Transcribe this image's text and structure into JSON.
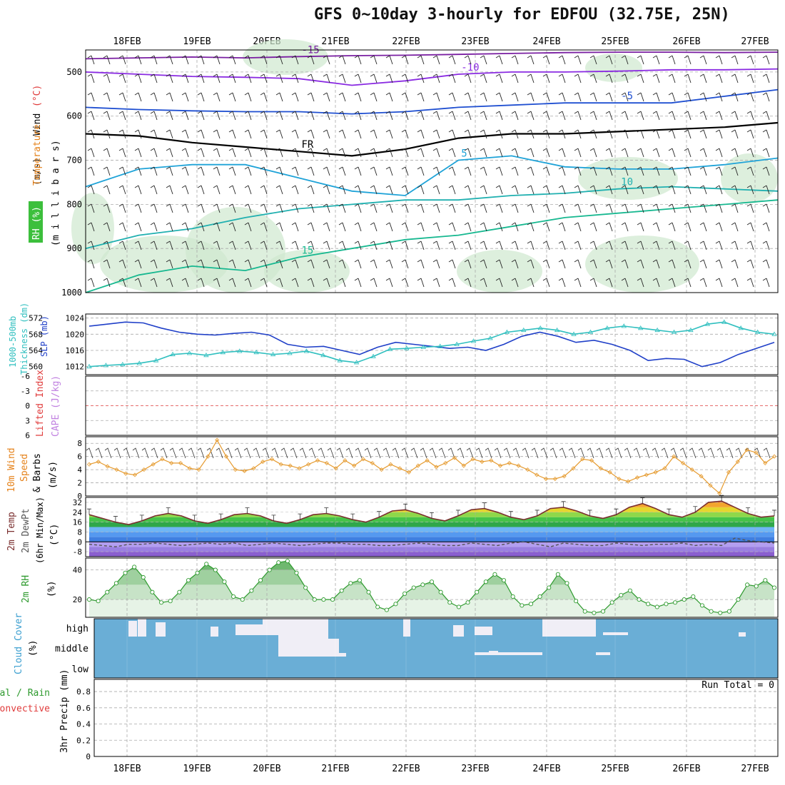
{
  "title": "GFS 0~10day 3-hourly for EDFOU (32.75E, 25N)",
  "date_labels": [
    "18FEB",
    "19FEB",
    "20FEB",
    "21FEB",
    "22FEB",
    "23FEB",
    "24FEB",
    "25FEB",
    "26FEB",
    "27FEB"
  ],
  "chart_data": [
    {
      "type": "contour",
      "panel": "upper-air",
      "ylabels": [
        "Temperature",
        "(°C)",
        "Wind",
        "(m/s)",
        "RH (%)",
        "(m i l l i b a r s)"
      ],
      "yticks": [
        500,
        600,
        700,
        800,
        900,
        1000
      ],
      "ylim": [
        450,
        1000
      ],
      "temperature_isotherms": [
        {
          "label": "-15",
          "color": "#7a1fa2",
          "p": [
            470,
            468,
            466,
            468,
            465,
            463,
            462,
            460,
            458,
            456,
            455,
            455,
            456,
            455
          ]
        },
        {
          "label": "-10",
          "color": "#8a2be2",
          "p": [
            500,
            505,
            510,
            512,
            515,
            530,
            520,
            505,
            500,
            500,
            498,
            495,
            495,
            493
          ]
        },
        {
          "label": "-5",
          "color": "#1f4fd1",
          "p": [
            580,
            585,
            588,
            590,
            590,
            595,
            590,
            580,
            575,
            570,
            570,
            570,
            555,
            540
          ]
        },
        {
          "label": "FR",
          "color": "#000000",
          "p": [
            640,
            645,
            660,
            670,
            680,
            690,
            675,
            650,
            640,
            640,
            635,
            630,
            625,
            615
          ]
        },
        {
          "label": "5",
          "color": "#1fa3d8",
          "p": [
            760,
            720,
            710,
            710,
            740,
            770,
            780,
            700,
            690,
            715,
            720,
            720,
            710,
            695
          ]
        },
        {
          "label": "10",
          "color": "#20b0b0",
          "p": [
            900,
            870,
            855,
            830,
            810,
            800,
            790,
            790,
            780,
            775,
            765,
            760,
            765,
            770
          ]
        },
        {
          "label": "15",
          "color": "#17b890",
          "p": [
            1000,
            960,
            940,
            950,
            920,
            900,
            880,
            870,
            850,
            830,
            820,
            810,
            800,
            790
          ]
        }
      ],
      "rh_shading": "light-green",
      "barbs": true
    },
    {
      "type": "line",
      "panel": "slp-thickness",
      "ylabels_left": [
        "1000-500mb",
        "Thickness (dm)"
      ],
      "ylabels_right": [
        "SLP (mb)"
      ],
      "yticks_left": [
        560,
        564,
        568,
        572
      ],
      "yticks_right": [
        1012,
        1016,
        1020,
        1024
      ],
      "ylim_right": [
        1010,
        1025
      ],
      "series": [
        {
          "name": "SLP (mb)",
          "color": "#1f3fc8",
          "marker": "none",
          "values": [
            1022.0,
            1022.5,
            1023.0,
            1022.8,
            1021.5,
            1020.5,
            1020.0,
            1019.8,
            1020.2,
            1020.5,
            1019.8,
            1017.5,
            1016.8,
            1017.0,
            1016.0,
            1015.0,
            1016.8,
            1018.0,
            1017.5,
            1017.0,
            1016.5,
            1016.8,
            1016.0,
            1017.5,
            1019.5,
            1020.5,
            1019.5,
            1018.0,
            1018.5,
            1017.5,
            1016.0,
            1013.5,
            1014.0,
            1013.8,
            1012.0,
            1013.0,
            1015.0,
            1016.5,
            1018.0
          ]
        },
        {
          "name": "1000-500mb Thickness (dm)",
          "color": "#2fbfbf",
          "marker": "triangle",
          "values": [
            1012.0,
            1012.3,
            1012.5,
            1012.8,
            1013.5,
            1015.0,
            1015.3,
            1014.8,
            1015.5,
            1015.8,
            1015.5,
            1015.0,
            1015.3,
            1015.8,
            1014.8,
            1013.5,
            1013.0,
            1014.5,
            1016.3,
            1016.5,
            1016.8,
            1017.0,
            1017.5,
            1018.3,
            1019.0,
            1020.5,
            1021.0,
            1021.5,
            1021.0,
            1020.0,
            1020.5,
            1021.5,
            1022.0,
            1021.5,
            1021.0,
            1020.5,
            1021.0,
            1022.5,
            1023.0,
            1021.5,
            1020.5,
            1020.0
          ]
        }
      ]
    },
    {
      "type": "line",
      "panel": "stability",
      "ylabels": [
        "Lifted Index",
        "CAPE (J/kg)"
      ],
      "yticks": [
        "-6",
        "-3",
        "0",
        "3",
        "6"
      ],
      "series": [
        {
          "name": "Lifted Index",
          "color": "#e03c3c",
          "values": []
        },
        {
          "name": "CAPE (J/kg)",
          "color": "#c080e0",
          "values": []
        }
      ]
    },
    {
      "type": "line",
      "panel": "10m-wind",
      "ylabels": [
        "10m Wind",
        "Speed",
        "& Barbs",
        "(m/s)"
      ],
      "yticks": [
        0,
        2,
        4,
        6,
        8
      ],
      "ylim": [
        0,
        9
      ],
      "series": [
        {
          "name": "10m Wind Speed",
          "color": "#e59a2e",
          "marker": "diamond",
          "values": [
            4.8,
            5.2,
            4.5,
            4.0,
            3.4,
            3.2,
            4.0,
            4.8,
            5.6,
            5.0,
            5.0,
            4.2,
            4.0,
            6.0,
            8.5,
            6.0,
            4.0,
            3.8,
            4.2,
            5.2,
            5.6,
            4.8,
            4.6,
            4.2,
            4.8,
            5.4,
            5.0,
            4.2,
            5.4,
            4.6,
            5.6,
            5.0,
            4.0,
            4.8,
            4.2,
            3.6,
            4.6,
            5.4,
            4.4,
            5.0,
            5.8,
            4.6,
            5.6,
            5.2,
            5.4,
            4.6,
            5.0,
            4.6,
            4.0,
            3.2,
            2.6,
            2.6,
            3.0,
            4.2,
            5.6,
            5.4,
            4.2,
            3.6,
            2.6,
            2.2,
            2.8,
            3.2,
            3.6,
            4.2,
            6.0,
            5.0,
            4.0,
            3.0,
            1.6,
            0.4,
            3.6,
            5.2,
            7.0,
            6.6,
            5.0,
            6.0
          ]
        }
      ]
    },
    {
      "type": "area",
      "panel": "2m-temp",
      "ylabels": [
        "2m Temp",
        "2m DewPt",
        "(6hr Min/Max)",
        "(°C)"
      ],
      "yticks": [
        -8,
        0,
        8,
        16,
        24,
        32
      ],
      "ylim": [
        -12,
        36
      ],
      "series": [
        {
          "name": "2m Temp",
          "color": "#7a2e2e",
          "values": [
            22,
            19,
            16,
            14,
            17,
            21,
            23,
            21,
            17,
            15,
            18,
            22,
            23,
            21,
            17,
            15,
            18,
            22,
            23,
            21,
            18,
            16,
            20,
            25,
            26,
            23,
            19,
            17,
            21,
            26,
            27,
            24,
            20,
            18,
            21,
            27,
            28,
            25,
            21,
            19,
            22,
            28,
            31,
            27,
            22,
            20,
            24,
            32,
            33,
            28,
            23,
            20,
            21
          ]
        },
        {
          "name": "2m DewPt",
          "color": "#555555",
          "dashed": true,
          "values": [
            -2,
            -3,
            -4,
            -2,
            -2,
            -1,
            -2,
            -3,
            -2,
            -1,
            -2,
            -1,
            -3,
            -2,
            -1,
            -2,
            -3,
            -2,
            -1,
            -1,
            -2,
            -2,
            -3,
            -3,
            -2,
            -1,
            -2,
            -3,
            -3,
            -1,
            -2,
            -3,
            -1,
            0,
            -2,
            -4,
            -1,
            -2,
            -3,
            -3,
            -1,
            -2,
            -3,
            -2,
            -2,
            -1,
            -3,
            -2,
            -3,
            3,
            1,
            0,
            -1
          ]
        }
      ]
    },
    {
      "type": "area",
      "panel": "2m-rh",
      "ylabels": [
        "2m RH",
        "(%)"
      ],
      "yticks": [
        20,
        40
      ],
      "ylim": [
        8,
        48
      ],
      "series": [
        {
          "name": "2m RH",
          "color": "#2e9a2e",
          "marker": "circle",
          "values": [
            20,
            19,
            25,
            31,
            38,
            42,
            35,
            25,
            18,
            19,
            25,
            33,
            38,
            44,
            40,
            32,
            22,
            20,
            26,
            33,
            40,
            45,
            46,
            38,
            28,
            20,
            20,
            20,
            26,
            31,
            33,
            25,
            15,
            13,
            17,
            24,
            28,
            30,
            32,
            25,
            18,
            15,
            18,
            25,
            32,
            37,
            33,
            22,
            16,
            17,
            22,
            28,
            37,
            31,
            19,
            12,
            11,
            12,
            18,
            23,
            26,
            20,
            17,
            15,
            17,
            18,
            20,
            22,
            16,
            12,
            11,
            12,
            20,
            30,
            29,
            33,
            28
          ]
        }
      ]
    },
    {
      "type": "heatmap",
      "panel": "cloud-cover",
      "ylabels": [
        "Cloud Cover",
        "(%)"
      ],
      "yticks": [
        "high",
        "middle",
        "low"
      ]
    },
    {
      "type": "bar",
      "panel": "precip",
      "ylabels_left": [
        "Total / Rain",
        "Convective"
      ],
      "ylabels": [
        "3hr Precip (mm)"
      ],
      "yticks": [
        0,
        0.2,
        0.4,
        0.6,
        0.8
      ],
      "ylim": [
        0,
        0.95
      ],
      "annotation": "Run Total = 0",
      "values": []
    }
  ]
}
